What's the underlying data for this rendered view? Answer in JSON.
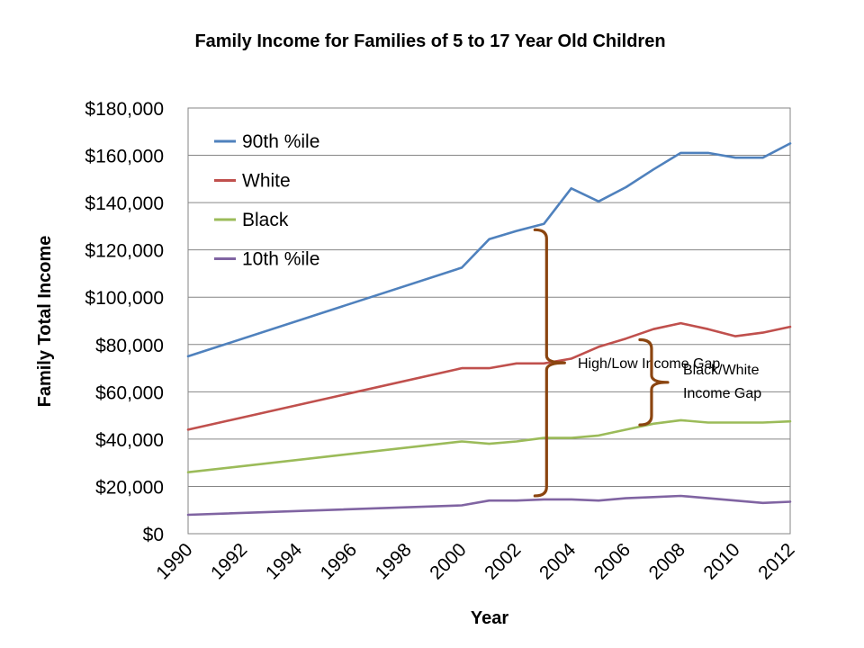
{
  "chart_data": {
    "type": "line",
    "title": "Family Income for Families of 5 to 17 Year Old Children",
    "xlabel": "Year",
    "ylabel": "Family Total Income",
    "xlim": [
      1990,
      2012
    ],
    "ylim": [
      0,
      180000
    ],
    "yticks": [
      0,
      20000,
      40000,
      60000,
      80000,
      100000,
      120000,
      140000,
      160000,
      180000
    ],
    "ytick_labels": [
      "$0",
      "$20,000",
      "$40,000",
      "$60,000",
      "$80,000",
      "$100,000",
      "$120,000",
      "$140,000",
      "$160,000",
      "$180,000"
    ],
    "xtick_labels": [
      "1990",
      "1992",
      "1994",
      "1996",
      "1998",
      "2000",
      "2002",
      "2004",
      "2006",
      "2008",
      "2010",
      "2012"
    ],
    "grid": true,
    "legend_position": "top-left",
    "series": [
      {
        "name": "90th %ile",
        "color": "#4F81BD",
        "x": [
          1990,
          2000,
          2001,
          2002,
          2003,
          2004,
          2005,
          2006,
          2007,
          2008,
          2009,
          2010,
          2011,
          2012
        ],
        "values": [
          75000,
          112500,
          124500,
          128000,
          131000,
          146000,
          140500,
          146500,
          154000,
          161000,
          161000,
          159000,
          159000,
          165000
        ]
      },
      {
        "name": "White",
        "color": "#C0504D",
        "x": [
          1990,
          2000,
          2001,
          2002,
          2003,
          2004,
          2005,
          2006,
          2007,
          2008,
          2009,
          2010,
          2011,
          2012
        ],
        "values": [
          44000,
          70000,
          70000,
          72000,
          72000,
          74000,
          79000,
          82500,
          86500,
          89000,
          86500,
          83500,
          85000,
          87500
        ]
      },
      {
        "name": "Black",
        "color": "#9BBB59",
        "x": [
          1990,
          2000,
          2001,
          2002,
          2003,
          2004,
          2005,
          2006,
          2007,
          2008,
          2009,
          2010,
          2011,
          2012
        ],
        "values": [
          26000,
          39000,
          38000,
          39000,
          40500,
          40500,
          41500,
          44000,
          46500,
          48000,
          47000,
          47000,
          47000,
          47500
        ]
      },
      {
        "name": "10th %ile",
        "color": "#8064A2",
        "x": [
          1990,
          2000,
          2001,
          2002,
          2003,
          2004,
          2005,
          2006,
          2007,
          2008,
          2009,
          2010,
          2011,
          2012
        ],
        "values": [
          8000,
          12000,
          14000,
          14000,
          14500,
          14500,
          14000,
          15000,
          15500,
          16000,
          15000,
          14000,
          13000,
          13500
        ]
      }
    ],
    "annotations": [
      {
        "name": "high-low-gap",
        "label": "High/Low Income Gap",
        "brace_year": 2003,
        "y_from": 16000,
        "y_to": 128500
      },
      {
        "name": "black-white-gap",
        "label_lines": [
          "Black/White",
          "Income Gap"
        ],
        "brace_year": 2007,
        "y_from": 46000,
        "y_to": 82000
      }
    ],
    "brace_color": "#8B4510"
  }
}
